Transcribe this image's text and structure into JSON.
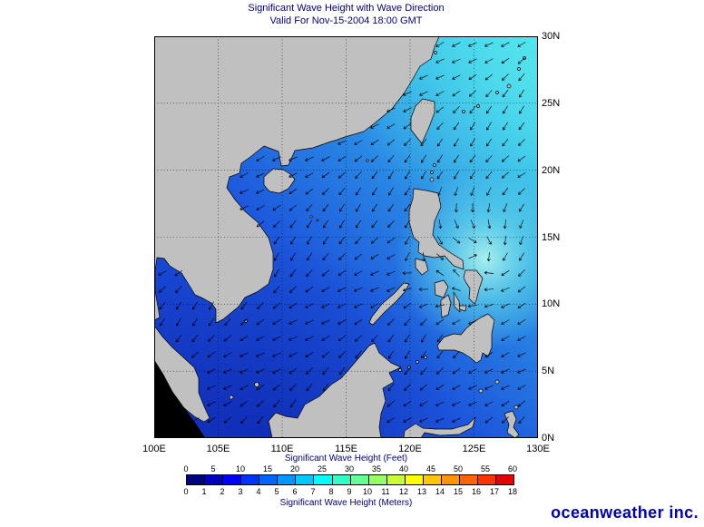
{
  "title": {
    "line1": "Significant Wave Height with Wave Direction",
    "line2": "Valid For Nov-15-2004 18:00 GMT"
  },
  "map": {
    "lat_ticks": [
      "30N",
      "25N",
      "20N",
      "15N",
      "10N",
      "5N",
      "0N"
    ],
    "lon_ticks": [
      "100E",
      "105E",
      "110E",
      "115E",
      "120E",
      "125E",
      "130E"
    ],
    "lon_range_deg": [
      100,
      130
    ],
    "lat_range_deg": [
      0,
      30
    ]
  },
  "legend": {
    "feet_label": "Significant Wave Height (Feet)",
    "feet_ticks": [
      "0",
      "5",
      "10",
      "15",
      "20",
      "25",
      "30",
      "35",
      "40",
      "45",
      "50",
      "55",
      "60"
    ],
    "meters_label": "Significant Wave Height (Meters)",
    "meters_ticks": [
      "0",
      "1",
      "2",
      "3",
      "4",
      "5",
      "6",
      "7",
      "8",
      "9",
      "10",
      "11",
      "12",
      "13",
      "14",
      "15",
      "16",
      "17",
      "18"
    ],
    "segment_colors": [
      "#000082",
      "#0000c4",
      "#0000ff",
      "#0032ff",
      "#0064ff",
      "#0096ff",
      "#00c8ff",
      "#00ffff",
      "#32ffc8",
      "#64ff96",
      "#96ff64",
      "#c8ff32",
      "#ffff00",
      "#ffc800",
      "#ff9600",
      "#ff6400",
      "#ff3200",
      "#e60000"
    ]
  },
  "branding": {
    "logo_text": "oceanweather inc."
  },
  "colors": {
    "title_text": "#000080",
    "land": "#c0c0c0",
    "coastline": "#000000",
    "ocean_low": "#1334c4",
    "ocean_high": "#55e2ec",
    "storm_peak": "#aef6ee",
    "logo_blue": "#0000b4"
  },
  "chart_data": {
    "type": "heatmap",
    "title": "Significant Wave Height with Wave Direction",
    "subtitle": "Valid For Nov-15-2004 18:00 GMT",
    "x_ticks": [
      "100E",
      "105E",
      "110E",
      "115E",
      "120E",
      "125E",
      "130E"
    ],
    "y_ticks": [
      "0N",
      "5N",
      "10N",
      "15N",
      "20N",
      "25N",
      "30N"
    ],
    "colorbar_feet": [
      0,
      5,
      10,
      15,
      20,
      25,
      30,
      35,
      40,
      45,
      50,
      55,
      60
    ],
    "colorbar_meters": [
      0,
      1,
      2,
      3,
      4,
      5,
      6,
      7,
      8,
      9,
      10,
      11,
      12,
      13,
      14,
      15,
      16,
      17,
      18
    ],
    "description": "Wave height field over South China Sea and Philippine Sea; low (dark blue) heights near the equator and coasts, brighter cyan maximum east of Luzon; arrows indicate wave direction generally toward the southwest"
  }
}
